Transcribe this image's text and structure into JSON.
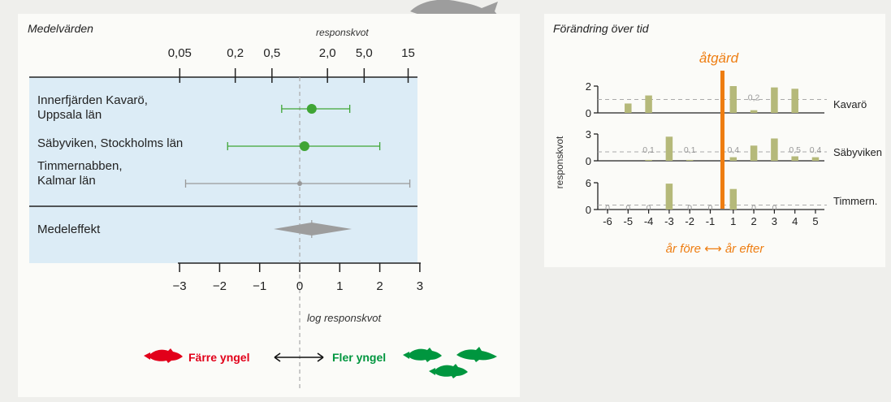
{
  "forest": {
    "title": "Medelvärden",
    "top_axis_title": "responskvot",
    "top_ticks": [
      "0,05",
      "0,2",
      "0,5",
      "2,0",
      "5,0",
      "15"
    ],
    "bottom_ticks": [
      "−3",
      "−2",
      "−1",
      "0",
      "1",
      "2",
      "3"
    ],
    "bottom_axis_title": "log responskvot",
    "rows": [
      {
        "label_lines": [
          "Innerfjärden Kavarö,",
          "Uppsala län"
        ],
        "estimate": 0.3,
        "ci": [
          -0.45,
          1.25
        ],
        "color": "#3fa535"
      },
      {
        "label_lines": [
          "Säbyviken, Stockholms län"
        ],
        "estimate": 0.12,
        "ci": [
          -1.8,
          2.0
        ],
        "color": "#3fa535"
      },
      {
        "label_lines": [
          "Timmernabben,",
          "Kalmar län"
        ],
        "estimate": 0.0,
        "ci": [
          -2.85,
          2.75
        ],
        "color": "#999999"
      }
    ],
    "mean_label": "Medeleffekt",
    "mean_effect": {
      "estimate": 0.3,
      "ci": [
        -0.65,
        1.3
      ]
    },
    "legend": {
      "fewer": "Färre yngel",
      "more": "Fler yngel",
      "fewer_color": "#e2001a",
      "more_color": "#00963f"
    }
  },
  "chart_data": {
    "type": "bar",
    "title": "Förändring över tid",
    "ylabel": "responskvot",
    "intervention_label": "åtgärd",
    "intervention_color": "#ee7d11",
    "xlabel": "år före ⟷ år efter",
    "categories": [
      "-6",
      "-5",
      "-4",
      "-3",
      "-2",
      "-1",
      "1",
      "2",
      "3",
      "4",
      "5"
    ],
    "series": [
      {
        "name": "Kavarö",
        "ylim": [
          0,
          2
        ],
        "yticks": [
          "0",
          "2"
        ],
        "values": [
          null,
          0.7,
          1.3,
          null,
          null,
          null,
          2.0,
          0.2,
          1.9,
          1.8,
          null
        ],
        "labels": {
          "7": "0,2"
        }
      },
      {
        "name": "Säbyviken",
        "ylim": [
          0,
          3
        ],
        "yticks": [
          "0",
          "3"
        ],
        "values": [
          null,
          null,
          0.1,
          2.7,
          0.1,
          null,
          0.4,
          1.7,
          2.5,
          0.5,
          0.4
        ],
        "labels": {
          "2": "0,1",
          "4": "0,1",
          "6": "0,4",
          "9": "0,5",
          "10": "0,4"
        }
      },
      {
        "name": "Timmern.",
        "ylim": [
          0,
          6
        ],
        "yticks": [
          "0",
          "6"
        ],
        "values": [
          0,
          0,
          0,
          5.8,
          0,
          0,
          4.6,
          0,
          0,
          null,
          null
        ],
        "labels": {
          "0": "0",
          "1": "0",
          "2": "0",
          "4": "0",
          "5": "0",
          "7": "0",
          "8": "0"
        }
      }
    ],
    "bar_color": "#b5b97a"
  }
}
